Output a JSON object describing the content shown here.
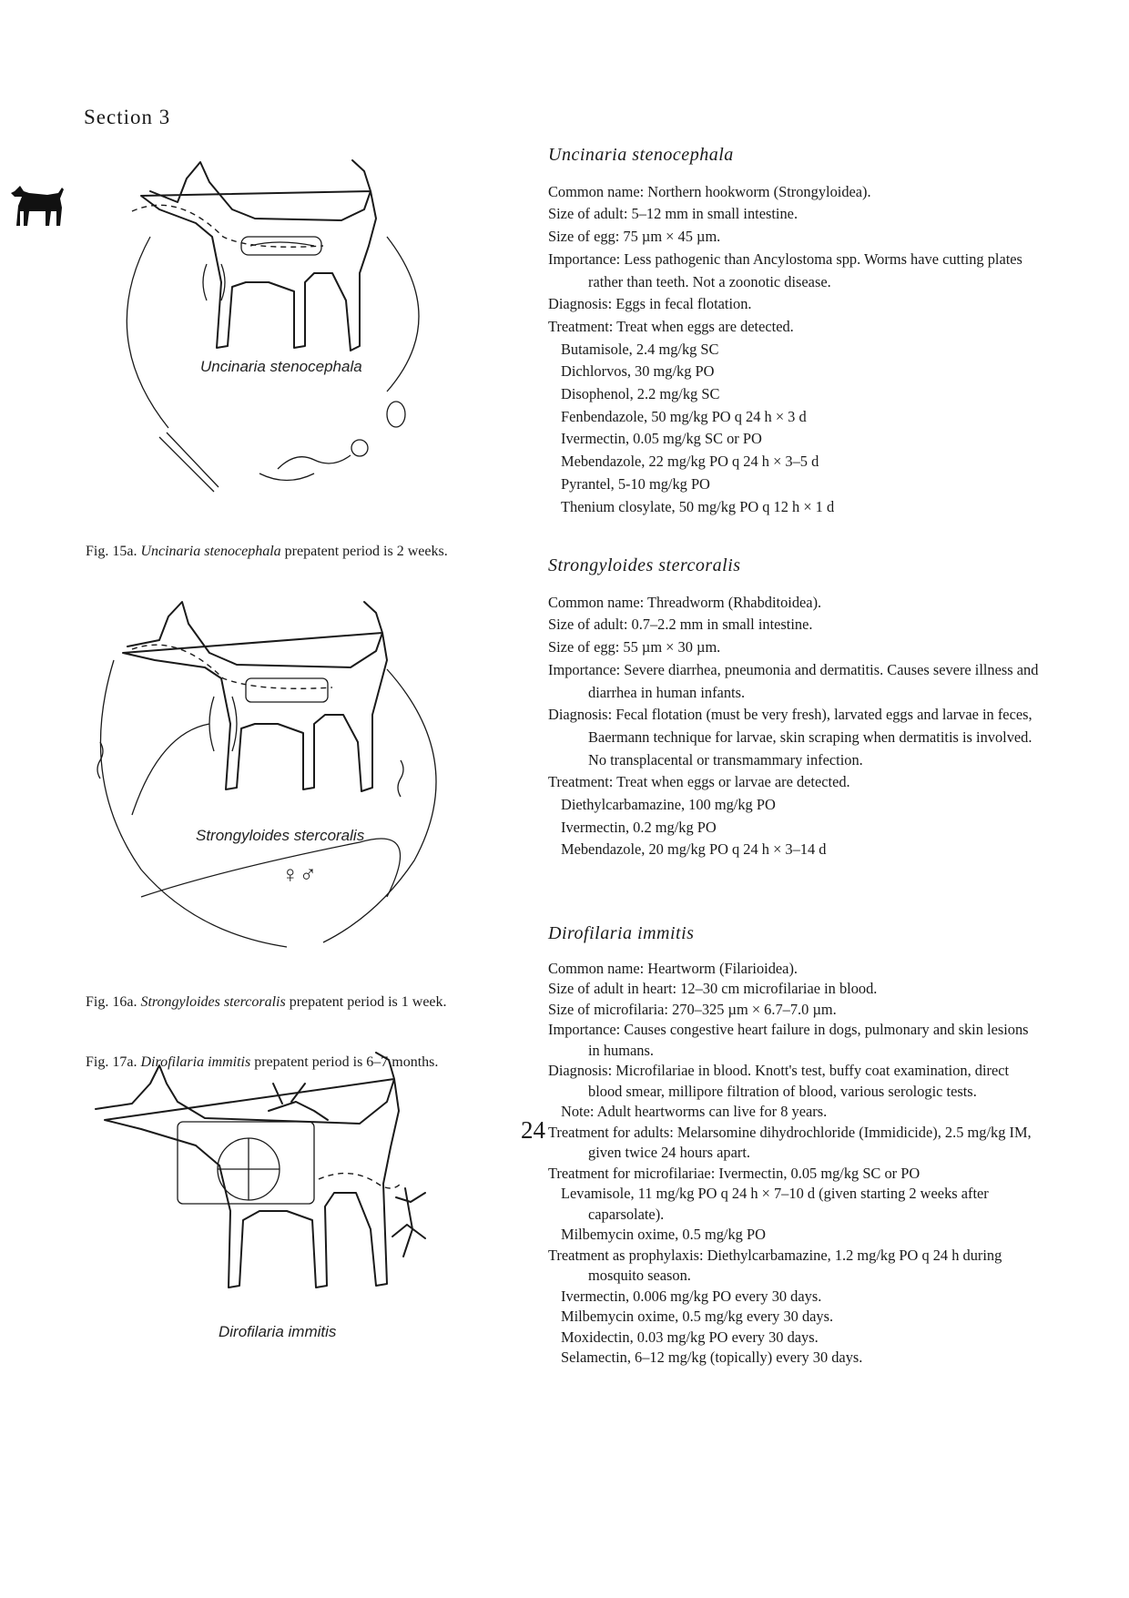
{
  "section_label": "Section 3",
  "figures": [
    {
      "label": "Uncinaria stenocephala",
      "caption_prefix": "Fig. 15a. ",
      "caption_species": "Uncinaria stenocephala",
      "caption_suffix": " prepatent period is 2 weeks."
    },
    {
      "label": "Strongyloides stercoralis",
      "caption_prefix": "Fig. 16a. ",
      "caption_species": "Strongyloides stercoralis",
      "caption_suffix": " prepatent period is 1 week."
    },
    {
      "label": "Dirofilaria immitis",
      "caption_prefix": "Fig. 17a. ",
      "caption_species": "Dirofilaria immitis",
      "caption_suffix": " prepatent period is 6–7 months."
    }
  ],
  "sex_symbols": "♀♂",
  "entries": [
    {
      "title": "Uncinaria stenocephala",
      "lines": [
        {
          "text": "Common name: Northern hookworm (Strongyloidea).",
          "style": "line"
        },
        {
          "text": "Size of adult: 5–12 mm in small intestine.",
          "style": "line"
        },
        {
          "text": "Size of egg: 75 µm × 45 µm.",
          "style": "line"
        },
        {
          "text": "Importance: Less pathogenic than Ancylostoma spp. Worms have cutting plates rather than teeth. Not a zoonotic disease.",
          "style": "hang"
        },
        {
          "text": "Diagnosis: Eggs in fecal flotation.",
          "style": "line"
        },
        {
          "text": "Treatment: Treat when eggs are detected.",
          "style": "line"
        },
        {
          "text": "Butamisole, 2.4 mg/kg SC",
          "style": "sub"
        },
        {
          "text": "Dichlorvos, 30 mg/kg PO",
          "style": "sub"
        },
        {
          "text": "Disophenol, 2.2 mg/kg SC",
          "style": "sub"
        },
        {
          "text": "Fenbendazole, 50 mg/kg PO q 24 h × 3 d",
          "style": "sub"
        },
        {
          "text": "Ivermectin, 0.05 mg/kg SC or PO",
          "style": "sub"
        },
        {
          "text": "Mebendazole, 22 mg/kg PO q 24 h × 3–5 d",
          "style": "sub"
        },
        {
          "text": "Pyrantel, 5-10 mg/kg PO",
          "style": "sub"
        },
        {
          "text": "Thenium closylate, 50 mg/kg PO q 12 h × 1 d",
          "style": "sub"
        }
      ]
    },
    {
      "title": "Strongyloides stercoralis",
      "lines": [
        {
          "text": "Common name: Threadworm (Rhabditoidea).",
          "style": "line"
        },
        {
          "text": "Size of adult: 0.7–2.2 mm in small intestine.",
          "style": "line"
        },
        {
          "text": "Size of egg: 55 µm × 30 µm.",
          "style": "line"
        },
        {
          "text": "Importance: Severe diarrhea, pneumonia and dermatitis. Causes severe illness and diarrhea in human infants.",
          "style": "hang"
        },
        {
          "text": "Diagnosis: Fecal flotation (must be very fresh), larvated eggs and larvae in feces, Baermann technique for larvae, skin scraping when dermatitis is involved. No transplacental or transmammary infection.",
          "style": "hang"
        },
        {
          "text": "Treatment: Treat when eggs or larvae are detected.",
          "style": "line"
        },
        {
          "text": "Diethylcarbamazine, 100 mg/kg PO",
          "style": "sub"
        },
        {
          "text": "Ivermectin, 0.2 mg/kg PO",
          "style": "sub"
        },
        {
          "text": "Mebendazole, 20 mg/kg PO q 24 h × 3–14 d",
          "style": "sub"
        }
      ]
    },
    {
      "title": "Dirofilaria immitis",
      "lines": [
        {
          "text": "Common name: Heartworm (Filarioidea).",
          "style": "line"
        },
        {
          "text": "Size of adult in heart: 12–30 cm microfilariae in blood.",
          "style": "line"
        },
        {
          "text": "Size of microfilaria: 270–325 µm × 6.7–7.0 µm.",
          "style": "line"
        },
        {
          "text": "Importance: Causes congestive heart failure in dogs, pulmonary and skin lesions in humans.",
          "style": "hang"
        },
        {
          "text": "Diagnosis: Microfilariae in blood. Knott's test, buffy coat examination, direct blood smear, millipore filtration of blood, various serologic tests.",
          "style": "hang"
        },
        {
          "text": "Note: Adult heartworms can live for 8 years.",
          "style": "sub"
        },
        {
          "text": "Treatment for adults: Melarsomine dihydrochloride (Immidicide), 2.5 mg/kg IM, given twice 24 hours apart.",
          "style": "hang"
        },
        {
          "text": "Treatment for microfilariae: Ivermectin, 0.05 mg/kg SC or PO",
          "style": "line"
        },
        {
          "text": "Levamisole, 11 mg/kg PO q 24 h × 7–10 d (given starting 2 weeks after caparsolate).",
          "style": "subhang"
        },
        {
          "text": "Milbemycin oxime, 0.5 mg/kg PO",
          "style": "sub"
        },
        {
          "text": "Treatment as prophylaxis: Diethylcarbamazine, 1.2 mg/kg PO q 24 h during mosquito season.",
          "style": "hang"
        },
        {
          "text": "Ivermectin, 0.006 mg/kg PO every 30 days.",
          "style": "sub"
        },
        {
          "text": "Milbemycin oxime, 0.5 mg/kg every 30 days.",
          "style": "sub"
        },
        {
          "text": "Moxidectin, 0.03 mg/kg PO every 30 days.",
          "style": "sub"
        },
        {
          "text": "Selamectin, 6–12 mg/kg (topically) every 30 days.",
          "style": "sub"
        }
      ]
    }
  ],
  "page_number": "24"
}
